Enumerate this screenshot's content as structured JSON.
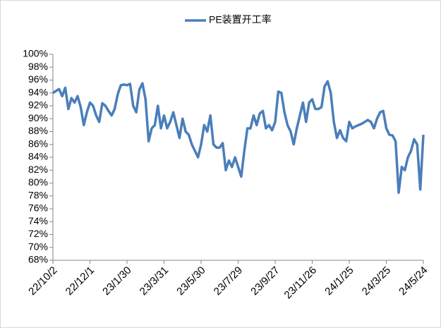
{
  "chart_data": {
    "type": "line",
    "categories": [
      "22/10/2",
      null,
      null,
      null,
      null,
      null,
      null,
      null,
      null,
      null,
      null,
      null,
      "22/12/1",
      null,
      null,
      null,
      null,
      null,
      null,
      null,
      null,
      null,
      null,
      null,
      "23/1/30",
      null,
      null,
      null,
      null,
      null,
      null,
      null,
      null,
      null,
      null,
      null,
      "23/3/31",
      null,
      null,
      null,
      null,
      null,
      null,
      null,
      null,
      null,
      null,
      null,
      "23/5/30",
      null,
      null,
      null,
      null,
      null,
      null,
      null,
      null,
      null,
      null,
      null,
      "23/7/29",
      null,
      null,
      null,
      null,
      null,
      null,
      null,
      null,
      null,
      null,
      null,
      "23/9/27",
      null,
      null,
      null,
      null,
      null,
      null,
      null,
      null,
      null,
      null,
      null,
      "23/11/26",
      null,
      null,
      null,
      null,
      null,
      null,
      null,
      null,
      null,
      null,
      null,
      "24/1/25",
      null,
      null,
      null,
      null,
      null,
      null,
      null,
      null,
      null,
      null,
      null,
      "24/3/25",
      null,
      null,
      null,
      null,
      null,
      null,
      null,
      null,
      null,
      null,
      null,
      "24/5/24"
    ],
    "series": [
      {
        "name": "PE装置开工率",
        "color": "#4a7ebb",
        "values": [
          94,
          94.3,
          94.6,
          93.5,
          94.8,
          91.5,
          93.2,
          92.5,
          93.5,
          91.8,
          89,
          91,
          92.5,
          92,
          90.5,
          89.5,
          92.4,
          92,
          91.2,
          90.5,
          91.5,
          93.8,
          95.2,
          95.3,
          95.2,
          95.4,
          92,
          91,
          94.5,
          95.5,
          93,
          86.5,
          88.5,
          89,
          92,
          88.5,
          90.5,
          88.5,
          89.5,
          91,
          89,
          87,
          90,
          88,
          87.5,
          86,
          85,
          84,
          86,
          89,
          88,
          90.5,
          86,
          85.5,
          85.5,
          86.2,
          82,
          83.5,
          82.5,
          84,
          82.5,
          81,
          85,
          88.5,
          88.5,
          90.5,
          89,
          90.8,
          91.2,
          88.5,
          89,
          88.2,
          89.5,
          94.2,
          94,
          91,
          89,
          88,
          86,
          88.5,
          90.5,
          92.5,
          89.5,
          92.5,
          93,
          91.5,
          91.5,
          91.8,
          95,
          95.8,
          94,
          89.5,
          87,
          88.2,
          87,
          86.5,
          89.5,
          88.5,
          88.8,
          89,
          89.2,
          89.5,
          89.8,
          89.5,
          88.5,
          90,
          91,
          91.2,
          88.5,
          87.5,
          87.4,
          86.5,
          78.5,
          82.5,
          82,
          84,
          85,
          86.8,
          86,
          79,
          87.5
        ]
      }
    ],
    "ylim": [
      68,
      100
    ],
    "yticks": [
      {
        "value": 68,
        "label": "68%"
      },
      {
        "value": 70,
        "label": "70%"
      },
      {
        "value": 72,
        "label": "72%"
      },
      {
        "value": 74,
        "label": "74%"
      },
      {
        "value": 76,
        "label": "76%"
      },
      {
        "value": 78,
        "label": "78%"
      },
      {
        "value": 80,
        "label": "80%"
      },
      {
        "value": 82,
        "label": "82%"
      },
      {
        "value": 84,
        "label": "84%"
      },
      {
        "value": 86,
        "label": "86%"
      },
      {
        "value": 88,
        "label": "88%"
      },
      {
        "value": 90,
        "label": "90%"
      },
      {
        "value": 92,
        "label": "92%"
      },
      {
        "value": 94,
        "label": "94%"
      },
      {
        "value": 96,
        "label": "96%"
      },
      {
        "value": 98,
        "label": "98%"
      },
      {
        "value": 100,
        "label": "100%"
      }
    ],
    "grid": false,
    "legend": "top"
  }
}
